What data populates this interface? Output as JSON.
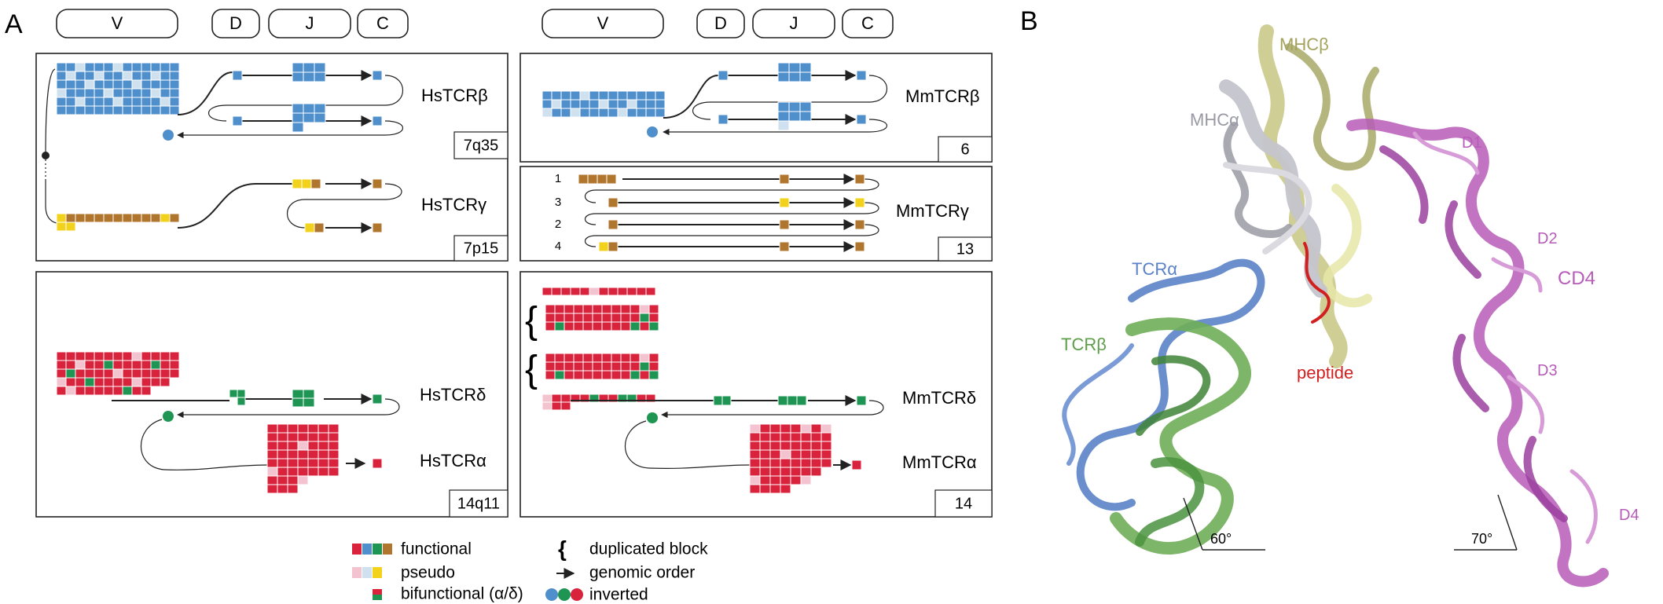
{
  "panels": {
    "a": "A",
    "b": "B"
  },
  "headers": {
    "left": {
      "v": "V",
      "d": "D",
      "j": "J",
      "c": "C"
    },
    "right": {
      "v": "V",
      "d": "D",
      "j": "J",
      "c": "C"
    }
  },
  "loci": {
    "hs_trb": "HsTCRβ",
    "hs_trg": "HsTCRγ",
    "hs_trd": "HsTCRδ",
    "hs_tra": "HsTCRα",
    "mm_trb": "MmTCRβ",
    "mm_trg": "MmTCRγ",
    "mm_trd": "MmTCRδ",
    "mm_tra": "MmTCRα"
  },
  "chromosomes": {
    "hs_b": "7q35",
    "hs_g": "7p15",
    "hs_ad": "14q11",
    "mm_b": "6",
    "mm_g": "13",
    "mm_ad": "14"
  },
  "mm_trg_clusters": [
    "1",
    "3",
    "2",
    "4"
  ],
  "legend": {
    "functional": "functional",
    "pseudo": "pseudo",
    "bifunctional": "bifunctional (α/δ)",
    "duplicated_symbol": "{",
    "duplicated": "duplicated block",
    "genomic_order": "genomic order",
    "inverted": "inverted"
  },
  "structure_labels": {
    "mhc_beta": "MHCβ",
    "mhc_alpha": "MHCα",
    "tcr_alpha": "TCRα",
    "tcr_beta": "TCRβ",
    "peptide": "peptide",
    "cd4": "CD4",
    "d1": "D1",
    "d2": "D2",
    "d3": "D3",
    "d4": "D4",
    "angle_left": "60°",
    "angle_right": "70°"
  },
  "colors": {
    "blue": "#4f8fcc",
    "blue_pseudo": "#cfe1ee",
    "gold": "#f3d21c",
    "brown": "#b0762e",
    "red": "#d9223b",
    "red_pseudo": "#f3c3cf",
    "green": "#1f9554",
    "mhc_beta": "#c9c98a",
    "mhc_alpha": "#c4c4cc",
    "tcr_alpha": "#5b82c8",
    "tcr_beta": "#6fae58",
    "peptide": "#d21f1f",
    "cd4": "#b75cb9"
  }
}
